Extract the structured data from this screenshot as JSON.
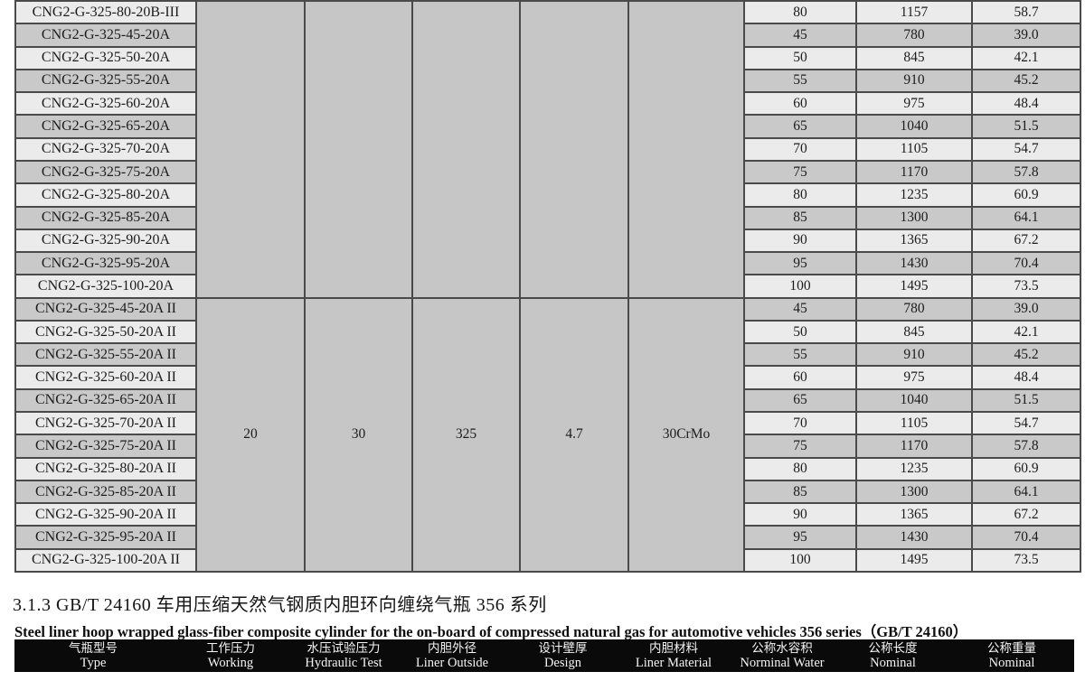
{
  "colors": {
    "row_light": "#ebebeb",
    "row_dark": "#c9c9c9",
    "merged_gray": "#c6c6c6",
    "grid_line": "#4a4a4a",
    "header_bar_bg": "#0a0a0a",
    "header_bar_text": "#f5f5f5"
  },
  "spec_table": {
    "merged_specs": {
      "working_pressure": "20",
      "hydraulic_test_pressure": "30",
      "liner_outside_diameter": "325",
      "design_wall_thickness": "4.7",
      "liner_material": "30CrMo"
    },
    "block_a": [
      [
        "CNG2-G-325-80-20B-III",
        "80",
        "1157",
        "58.7"
      ],
      [
        "CNG2-G-325-45-20A",
        "45",
        "780",
        "39.0"
      ],
      [
        "CNG2-G-325-50-20A",
        "50",
        "845",
        "42.1"
      ],
      [
        "CNG2-G-325-55-20A",
        "55",
        "910",
        "45.2"
      ],
      [
        "CNG2-G-325-60-20A",
        "60",
        "975",
        "48.4"
      ],
      [
        "CNG2-G-325-65-20A",
        "65",
        "1040",
        "51.5"
      ],
      [
        "CNG2-G-325-70-20A",
        "70",
        "1105",
        "54.7"
      ],
      [
        "CNG2-G-325-75-20A",
        "75",
        "1170",
        "57.8"
      ],
      [
        "CNG2-G-325-80-20A",
        "80",
        "1235",
        "60.9"
      ],
      [
        "CNG2-G-325-85-20A",
        "85",
        "1300",
        "64.1"
      ],
      [
        "CNG2-G-325-90-20A",
        "90",
        "1365",
        "67.2"
      ],
      [
        "CNG2-G-325-95-20A",
        "95",
        "1430",
        "70.4"
      ],
      [
        "CNG2-G-325-100-20A",
        "100",
        "1495",
        "73.5"
      ]
    ],
    "block_b": [
      [
        "CNG2-G-325-45-20A II",
        "45",
        "780",
        "39.0"
      ],
      [
        "CNG2-G-325-50-20A II",
        "50",
        "845",
        "42.1"
      ],
      [
        "CNG2-G-325-55-20A II",
        "55",
        "910",
        "45.2"
      ],
      [
        "CNG2-G-325-60-20A II",
        "60",
        "975",
        "48.4"
      ],
      [
        "CNG2-G-325-65-20A II",
        "65",
        "1040",
        "51.5"
      ],
      [
        "CNG2-G-325-70-20A II",
        "70",
        "1105",
        "54.7"
      ],
      [
        "CNG2-G-325-75-20A II",
        "75",
        "1170",
        "57.8"
      ],
      [
        "CNG2-G-325-80-20A II",
        "80",
        "1235",
        "60.9"
      ],
      [
        "CNG2-G-325-85-20A II",
        "85",
        "1300",
        "64.1"
      ],
      [
        "CNG2-G-325-90-20A II",
        "90",
        "1365",
        "67.2"
      ],
      [
        "CNG2-G-325-95-20A II",
        "95",
        "1430",
        "70.4"
      ],
      [
        "CNG2-G-325-100-20A II",
        "100",
        "1495",
        "73.5"
      ]
    ]
  },
  "caption": {
    "heading_zh": "3.1.3  GB/T 24160 车用压缩天然气钢质内胆环向缠绕气瓶 356 系列",
    "heading_en": "Steel liner hoop wrapped glass-fiber composite cylinder for the on-board of compressed natural gas for automotive vehicles 356 series（GB/T 24160）"
  },
  "next_table_header": {
    "columns": [
      {
        "zh": "气瓶型号",
        "en": "Type"
      },
      {
        "zh": "工作压力",
        "en": "Working"
      },
      {
        "zh": "水压试验压力",
        "en": "Hydraulic Test"
      },
      {
        "zh": "内胆外径",
        "en": "Liner Outside"
      },
      {
        "zh": "设计壁厚",
        "en": "Design"
      },
      {
        "zh": "内胆材料",
        "en": "Liner Material"
      },
      {
        "zh": "公称水容积",
        "en": "Norminal Water"
      },
      {
        "zh": "公称长度",
        "en": "Nominal"
      },
      {
        "zh": "公称重量",
        "en": "Nominal"
      }
    ]
  }
}
